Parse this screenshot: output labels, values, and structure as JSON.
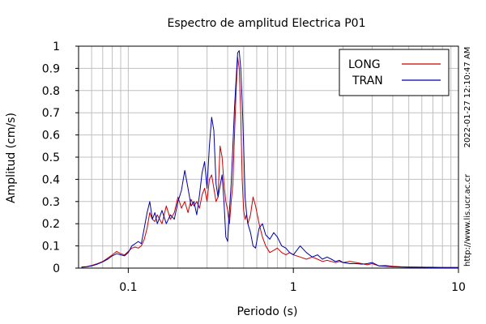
{
  "chart_data": {
    "type": "line",
    "title": "Espectro de amplitud Electrica P01",
    "xlabel": "Periodo (s)",
    "ylabel": "Amplitud (cm/s)",
    "x_scale": "log",
    "xlim": [
      0.05,
      10
    ],
    "ylim": [
      0,
      1
    ],
    "grid": true,
    "legend_position": "top-right",
    "x_tick_labels": [
      "0.1",
      "1",
      "10"
    ],
    "x_tick_values": [
      0.1,
      1,
      10
    ],
    "y_tick_labels": [
      "0",
      "0.1",
      "0.2",
      "0.3",
      "0.4",
      "0.5",
      "0.6",
      "0.7",
      "0.8",
      "0.9",
      "1"
    ],
    "y_tick_values": [
      0,
      0.1,
      0.2,
      0.3,
      0.4,
      0.5,
      0.6,
      0.7,
      0.8,
      0.9,
      1
    ],
    "side_text_timestamp": "2022-01-27 12:10:47 AM",
    "side_text_url": "http://www.lis.ucr.ac.cr",
    "series": [
      {
        "name": "LONG",
        "color": "#cc0000",
        "x": [
          0.052,
          0.056,
          0.06,
          0.065,
          0.07,
          0.075,
          0.08,
          0.085,
          0.09,
          0.095,
          0.1,
          0.105,
          0.11,
          0.115,
          0.12,
          0.125,
          0.13,
          0.135,
          0.14,
          0.145,
          0.15,
          0.16,
          0.17,
          0.18,
          0.19,
          0.2,
          0.21,
          0.22,
          0.23,
          0.24,
          0.25,
          0.26,
          0.27,
          0.28,
          0.29,
          0.3,
          0.31,
          0.32,
          0.33,
          0.34,
          0.35,
          0.36,
          0.37,
          0.38,
          0.39,
          0.4,
          0.41,
          0.42,
          0.43,
          0.44,
          0.45,
          0.46,
          0.47,
          0.48,
          0.49,
          0.5,
          0.51,
          0.52,
          0.53,
          0.55,
          0.57,
          0.59,
          0.62,
          0.65,
          0.68,
          0.72,
          0.76,
          0.8,
          0.85,
          0.9,
          0.95,
          1.0,
          1.1,
          1.2,
          1.3,
          1.4,
          1.5,
          1.6,
          1.7,
          1.8,
          1.9,
          2.0,
          2.2,
          2.4,
          2.6,
          2.8,
          3.0,
          3.3,
          3.6,
          4.0,
          4.5,
          5.0,
          6.0,
          7.0,
          8.0,
          10.0
        ],
        "y": [
          0.005,
          0.007,
          0.012,
          0.02,
          0.03,
          0.045,
          0.06,
          0.075,
          0.065,
          0.06,
          0.075,
          0.09,
          0.095,
          0.09,
          0.1,
          0.13,
          0.18,
          0.25,
          0.22,
          0.21,
          0.24,
          0.2,
          0.28,
          0.22,
          0.25,
          0.32,
          0.27,
          0.3,
          0.25,
          0.31,
          0.28,
          0.3,
          0.27,
          0.33,
          0.36,
          0.3,
          0.4,
          0.42,
          0.36,
          0.3,
          0.32,
          0.55,
          0.5,
          0.38,
          0.3,
          0.26,
          0.2,
          0.3,
          0.38,
          0.6,
          0.8,
          0.95,
          0.9,
          0.7,
          0.4,
          0.26,
          0.22,
          0.24,
          0.2,
          0.24,
          0.32,
          0.28,
          0.2,
          0.14,
          0.1,
          0.07,
          0.08,
          0.09,
          0.07,
          0.06,
          0.07,
          0.06,
          0.05,
          0.04,
          0.05,
          0.04,
          0.03,
          0.035,
          0.03,
          0.025,
          0.03,
          0.025,
          0.03,
          0.025,
          0.02,
          0.015,
          0.02,
          0.01,
          0.012,
          0.008,
          0.006,
          0.005,
          0.004,
          0.004,
          0.003,
          0.003
        ]
      },
      {
        "name": "TRAN",
        "color": "#0000aa",
        "x": [
          0.052,
          0.056,
          0.06,
          0.065,
          0.07,
          0.075,
          0.08,
          0.085,
          0.09,
          0.095,
          0.1,
          0.105,
          0.11,
          0.115,
          0.12,
          0.125,
          0.13,
          0.135,
          0.14,
          0.145,
          0.15,
          0.16,
          0.17,
          0.18,
          0.19,
          0.2,
          0.21,
          0.22,
          0.23,
          0.24,
          0.25,
          0.26,
          0.27,
          0.28,
          0.29,
          0.3,
          0.31,
          0.32,
          0.33,
          0.34,
          0.35,
          0.36,
          0.37,
          0.38,
          0.39,
          0.4,
          0.41,
          0.42,
          0.43,
          0.44,
          0.45,
          0.46,
          0.47,
          0.48,
          0.49,
          0.5,
          0.51,
          0.52,
          0.53,
          0.55,
          0.57,
          0.59,
          0.62,
          0.65,
          0.68,
          0.72,
          0.76,
          0.8,
          0.85,
          0.9,
          0.95,
          1.0,
          1.1,
          1.2,
          1.3,
          1.4,
          1.5,
          1.6,
          1.7,
          1.8,
          1.9,
          2.0,
          2.2,
          2.4,
          2.6,
          2.8,
          3.0,
          3.3,
          3.6,
          4.0,
          4.5,
          5.0,
          6.0,
          7.0,
          8.0,
          10.0
        ],
        "y": [
          0.004,
          0.006,
          0.01,
          0.018,
          0.028,
          0.04,
          0.055,
          0.065,
          0.06,
          0.055,
          0.07,
          0.1,
          0.11,
          0.12,
          0.11,
          0.18,
          0.25,
          0.3,
          0.22,
          0.25,
          0.2,
          0.26,
          0.2,
          0.24,
          0.22,
          0.3,
          0.35,
          0.44,
          0.36,
          0.28,
          0.3,
          0.24,
          0.33,
          0.43,
          0.48,
          0.36,
          0.55,
          0.68,
          0.62,
          0.38,
          0.32,
          0.37,
          0.42,
          0.3,
          0.14,
          0.12,
          0.26,
          0.38,
          0.55,
          0.72,
          0.85,
          0.97,
          0.98,
          0.9,
          0.75,
          0.55,
          0.32,
          0.25,
          0.2,
          0.16,
          0.1,
          0.09,
          0.18,
          0.2,
          0.15,
          0.13,
          0.16,
          0.14,
          0.1,
          0.09,
          0.07,
          0.06,
          0.1,
          0.07,
          0.05,
          0.06,
          0.04,
          0.05,
          0.04,
          0.03,
          0.035,
          0.025,
          0.02,
          0.02,
          0.018,
          0.02,
          0.025,
          0.01,
          0.008,
          0.006,
          0.005,
          0.004,
          0.004,
          0.003,
          0.003,
          0.003
        ]
      }
    ]
  }
}
